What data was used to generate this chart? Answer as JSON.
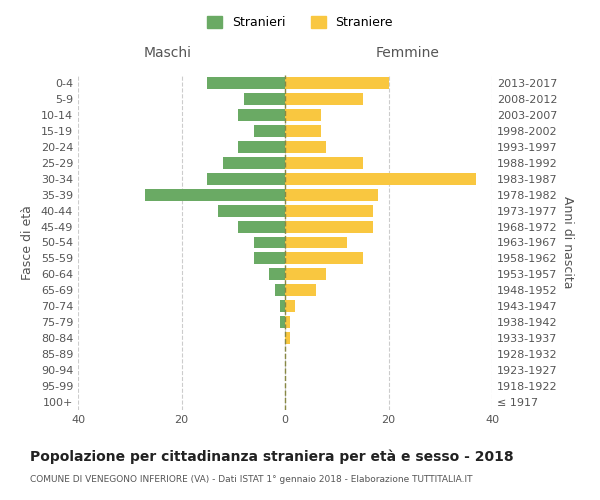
{
  "age_groups": [
    "100+",
    "95-99",
    "90-94",
    "85-89",
    "80-84",
    "75-79",
    "70-74",
    "65-69",
    "60-64",
    "55-59",
    "50-54",
    "45-49",
    "40-44",
    "35-39",
    "30-34",
    "25-29",
    "20-24",
    "15-19",
    "10-14",
    "5-9",
    "0-4"
  ],
  "birth_years": [
    "≤ 1917",
    "1918-1922",
    "1923-1927",
    "1928-1932",
    "1933-1937",
    "1938-1942",
    "1943-1947",
    "1948-1952",
    "1953-1957",
    "1958-1962",
    "1963-1967",
    "1968-1972",
    "1973-1977",
    "1978-1982",
    "1983-1987",
    "1988-1992",
    "1993-1997",
    "1998-2002",
    "2003-2007",
    "2008-2012",
    "2013-2017"
  ],
  "maschi": [
    0,
    0,
    0,
    0,
    0,
    1,
    1,
    2,
    3,
    6,
    6,
    9,
    13,
    27,
    15,
    12,
    9,
    6,
    9,
    8,
    15
  ],
  "femmine": [
    0,
    0,
    0,
    0,
    1,
    1,
    2,
    6,
    8,
    15,
    12,
    17,
    17,
    18,
    37,
    15,
    8,
    7,
    7,
    15,
    20
  ],
  "maschi_color": "#6aaa64",
  "femmine_color": "#f9c740",
  "bg_color": "#ffffff",
  "grid_color": "#cccccc",
  "title": "Popolazione per cittadinanza straniera per età e sesso - 2018",
  "subtitle": "COMUNE DI VENEGONO INFERIORE (VA) - Dati ISTAT 1° gennaio 2018 - Elaborazione TUTTITALIA.IT",
  "ylabel_left": "Fasce di età",
  "ylabel_right": "Anni di nascita",
  "xlabel_maschi": "Maschi",
  "xlabel_femmine": "Femmine",
  "legend_maschi": "Stranieri",
  "legend_femmine": "Straniere",
  "xlim": 40
}
